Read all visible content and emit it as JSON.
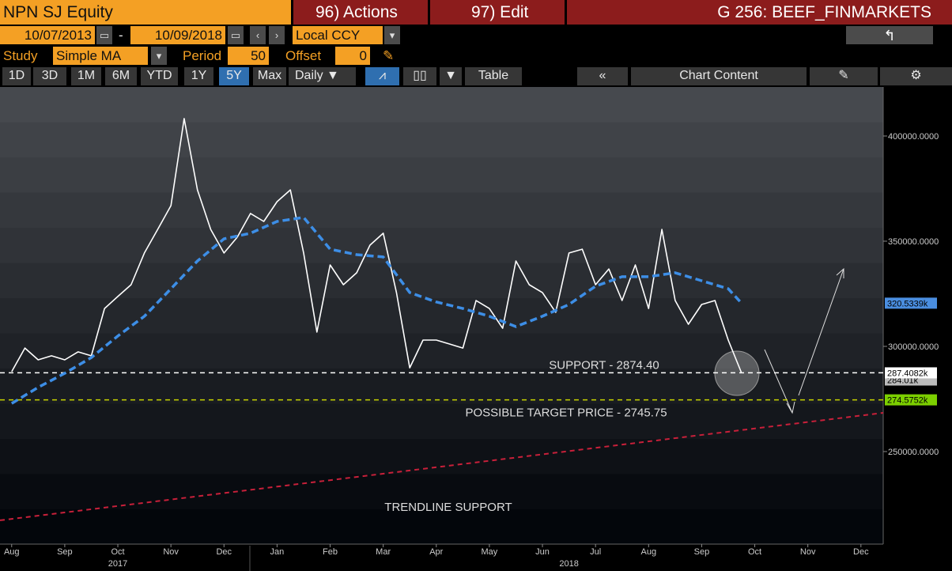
{
  "toolbar": {
    "security": "NPN SJ Equity",
    "actions": "96) Actions",
    "edit": "97) Edit",
    "page_title": "G 256: BEEF_FINMARKETS",
    "start_date": "10/07/2013",
    "date_separator": "-",
    "end_date": "10/09/2018",
    "currency": "Local CCY",
    "study_label": "Study",
    "study": "Simple MA",
    "period_label": "Period",
    "period": 50,
    "offset_label": "Offset",
    "offset": 0,
    "ranges": [
      "1D",
      "3D",
      "1M",
      "6M",
      "YTD",
      "1Y",
      "5Y",
      "Max"
    ],
    "frequency": "Daily",
    "table": "Table",
    "chart_content": "Chart Content"
  },
  "chart_data": {
    "type": "line",
    "xlim": [
      -0.22,
      16.42
    ],
    "xticks": [
      {
        "value": 0,
        "label": "Aug"
      },
      {
        "value": 1,
        "label": "Sep"
      },
      {
        "value": 2,
        "label": "Oct"
      },
      {
        "value": 3,
        "label": "Nov"
      },
      {
        "value": 4,
        "label": "Dec"
      },
      {
        "value": 5,
        "label": "Jan"
      },
      {
        "value": 6,
        "label": "Feb"
      },
      {
        "value": 7,
        "label": "Mar"
      },
      {
        "value": 8,
        "label": "Apr"
      },
      {
        "value": 9,
        "label": "May"
      },
      {
        "value": 10,
        "label": "Jun"
      },
      {
        "value": 11,
        "label": "Jul"
      },
      {
        "value": 12,
        "label": "Aug"
      },
      {
        "value": 13,
        "label": "Sep"
      },
      {
        "value": 14,
        "label": "Oct"
      },
      {
        "value": 15,
        "label": "Nov"
      },
      {
        "value": 16,
        "label": "Dec"
      }
    ],
    "years": [
      {
        "value": 2,
        "label": "2017"
      },
      {
        "value": 10.5,
        "label": "2018"
      }
    ],
    "ylim": [
      206000,
      423300
    ],
    "yticks": [
      {
        "value": 250000,
        "label": "250000.0000"
      },
      {
        "value": 300000,
        "label": "300000.0000"
      },
      {
        "value": 350000,
        "label": "350000.0000"
      },
      {
        "value": 400000,
        "label": "400000.0000"
      }
    ],
    "series": [
      {
        "color": "#ffffff",
        "x": [
          0,
          0.25,
          0.5,
          0.75,
          1,
          1.25,
          1.5,
          1.75,
          2,
          2.25,
          2.5,
          2.75,
          3,
          3.25,
          3.5,
          3.75,
          4,
          4.25,
          4.5,
          4.75,
          5,
          5.25,
          5.5,
          5.75,
          6,
          6.25,
          6.5,
          6.75,
          7,
          7.25,
          7.5,
          7.75,
          8,
          8.25,
          8.5,
          8.75,
          9,
          9.25,
          9.5,
          9.75,
          10,
          10.25,
          10.5,
          10.75,
          11,
          11.25,
          11.5,
          11.75,
          12,
          12.25,
          12.5,
          12.75,
          13,
          13.25,
          13.5,
          13.75
        ],
        "values": [
          288000,
          299200,
          293600,
          295500,
          293600,
          297400,
          295500,
          318000,
          323700,
          329300,
          344400,
          355600,
          366900,
          408300,
          374400,
          355600,
          344400,
          351900,
          363200,
          359400,
          368800,
          374400,
          344400,
          306800,
          338700,
          329300,
          335000,
          348100,
          353800,
          325600,
          289800,
          303000,
          303000,
          301100,
          299200,
          321800,
          318000,
          308600,
          340600,
          329300,
          325600,
          316200,
          344400,
          346200,
          329300,
          336800,
          321800,
          338700,
          318000,
          355600,
          321800,
          310500,
          319900,
          321800,
          303000,
          287408.2
        ]
      },
      {
        "color": "#3d8ee6",
        "x": [
          0,
          0.5,
          1,
          1.5,
          2,
          2.5,
          3,
          3.5,
          4,
          4.5,
          5,
          5.5,
          6,
          6.5,
          7,
          7.5,
          8,
          8.5,
          9,
          9.5,
          10,
          10.5,
          11,
          11.5,
          12,
          12.5,
          13,
          13.5,
          13.75
        ],
        "values": [
          272900,
          280500,
          287200,
          294700,
          304900,
          314300,
          327400,
          340600,
          351100,
          353800,
          359400,
          361300,
          346200,
          343600,
          342500,
          325600,
          321100,
          318000,
          314300,
          309400,
          314300,
          319900,
          328600,
          333100,
          333100,
          335000,
          331200,
          327400,
          320533.9
        ]
      }
    ],
    "reference_lines": [
      {
        "value": 287440,
        "color": "#ffffff",
        "label": "SUPPORT - 2874.40"
      },
      {
        "value": 274575.2,
        "color": "#c8d400",
        "label": "POSSIBLE TARGET PRICE - 2745.75"
      }
    ],
    "trendline": {
      "x": [
        -0.22,
        16.42
      ],
      "values": [
        217300,
        268400
      ],
      "color": "#c8203a",
      "label": "TRENDLINE SUPPORT"
    },
    "value_tags": [
      {
        "value": 320533.9,
        "label": "320.5339k",
        "color": "#4a8ee0"
      },
      {
        "value": 284010,
        "label": "284.01k",
        "color": "#bbbbbb"
      },
      {
        "value": 287408.2,
        "label": "287.4082k",
        "color": "#ffffff"
      },
      {
        "value": 274575.2,
        "label": "274.5752k",
        "color": "#7ccf00"
      }
    ]
  }
}
